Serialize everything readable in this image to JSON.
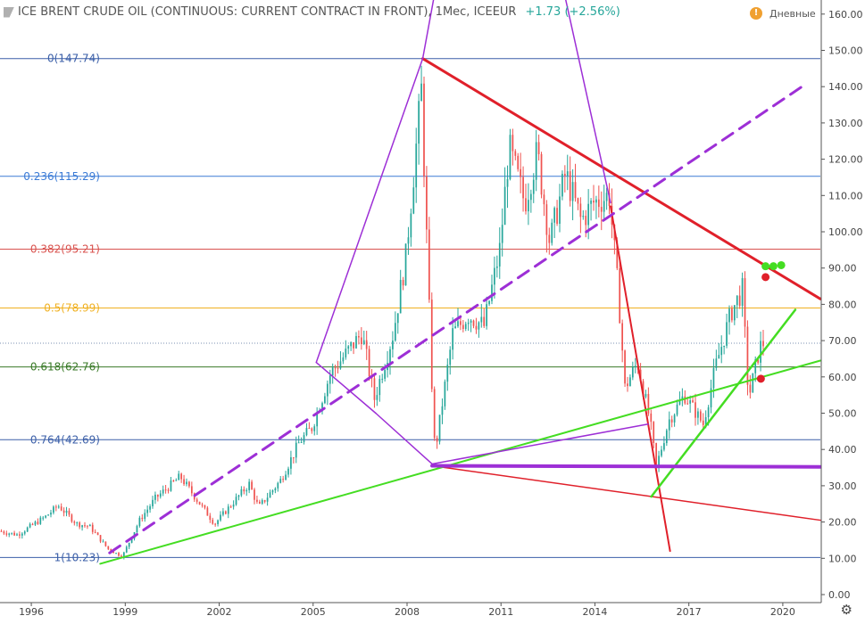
{
  "header": {
    "title": "ICE BRENT CRUDE OIL (CONTINUOUS: CURRENT CONTRACT IN FRONT), 1Мес, ICEEUR",
    "change": "+1.73 (+2.56%)",
    "warning_glyph": "!",
    "interval_label": "Дневные"
  },
  "settings_icon": "⚙",
  "colors": {
    "candle_up": "#26a69a",
    "candle_down": "#ef5350",
    "trend_red": "#e0202a",
    "trend_green": "#44dd22",
    "trend_purple": "#9d2fd6",
    "fib_0": "#3b5fa8",
    "fib_0236": "#3b7bd6",
    "fib_0382": "#d9534f",
    "fib_05": "#f0b020",
    "fib_0618": "#3a7a28",
    "fib_0764": "#3b5fa8",
    "fib_1": "#3b5fa8"
  },
  "chart_data": {
    "type": "candlestick",
    "interval": "1 month",
    "x_range": [
      1995.0,
      2021.2
    ],
    "ylim": [
      0,
      162
    ],
    "y_ticks": [
      "0.00",
      "10.00",
      "20.00",
      "30.00",
      "40.00",
      "50.00",
      "60.00",
      "70.00",
      "80.00",
      "90.00",
      "100.00",
      "110.00",
      "120.00",
      "130.00",
      "140.00",
      "150.00",
      "160.00"
    ],
    "x_ticks": [
      "1996",
      "1999",
      "2002",
      "2005",
      "2008",
      "2011",
      "2014",
      "2017",
      "2020"
    ],
    "fibonacci": [
      {
        "label": "0(147.74)",
        "value": 147.74
      },
      {
        "label": "0.236(115.29)",
        "value": 115.29
      },
      {
        "label": "0.382(95.21)",
        "value": 95.21
      },
      {
        "label": "0.5(78.99)",
        "value": 78.99
      },
      {
        "label": "0.618(62.76)",
        "value": 62.76
      },
      {
        "label": "0.764(42.69)",
        "value": 42.69
      },
      {
        "label": "1(10.23)",
        "value": 10.23
      }
    ],
    "current_price": 69.3,
    "price_path": [
      [
        1995.0,
        17.5
      ],
      [
        1995.6,
        16.5
      ],
      [
        1996.5,
        21.5
      ],
      [
        1996.9,
        24.5
      ],
      [
        1997.5,
        19.5
      ],
      [
        1997.9,
        18.8
      ],
      [
        1998.5,
        12.5
      ],
      [
        1998.95,
        10.5
      ],
      [
        1999.5,
        20.5
      ],
      [
        2000.0,
        26.5
      ],
      [
        2000.8,
        32.5
      ],
      [
        2001.3,
        26.5
      ],
      [
        2001.9,
        19.5
      ],
      [
        2002.5,
        25.5
      ],
      [
        2003.0,
        30.5
      ],
      [
        2003.3,
        24.0
      ],
      [
        2004.0,
        31.5
      ],
      [
        2004.6,
        42.0
      ],
      [
        2005.0,
        46.0
      ],
      [
        2005.6,
        61.0
      ],
      [
        2006.6,
        72.0
      ],
      [
        2007.0,
        54.0
      ],
      [
        2007.6,
        72.0
      ],
      [
        2008.0,
        93.0
      ],
      [
        2008.5,
        139.0
      ],
      [
        2008.9,
        42.0
      ],
      [
        2009.0,
        43.0
      ],
      [
        2009.5,
        72.0
      ],
      [
        2010.0,
        77.0
      ],
      [
        2010.5,
        74.0
      ],
      [
        2011.0,
        95.0
      ],
      [
        2011.3,
        123.0
      ],
      [
        2011.8,
        108.0
      ],
      [
        2012.2,
        122.0
      ],
      [
        2012.6,
        97.0
      ],
      [
        2013.1,
        116.0
      ],
      [
        2013.6,
        103.0
      ],
      [
        2014.0,
        108.0
      ],
      [
        2014.5,
        110.0
      ],
      [
        2014.8,
        82.0
      ],
      [
        2015.0,
        57.0
      ],
      [
        2015.4,
        64.0
      ],
      [
        2015.8,
        48.0
      ],
      [
        2016.0,
        35.0
      ],
      [
        2016.4,
        48.0
      ],
      [
        2016.9,
        55.0
      ],
      [
        2017.5,
        47.0
      ],
      [
        2017.9,
        63.0
      ],
      [
        2018.4,
        78.0
      ],
      [
        2018.75,
        84.0
      ],
      [
        2018.95,
        54.0
      ],
      [
        2019.3,
        68.0
      ],
      [
        2019.4,
        69.3
      ]
    ],
    "trend_lines": [
      {
        "color": "trend_red",
        "width": 3,
        "from": [
          2008.5,
          147.74
        ],
        "to": [
          2021.2,
          81.5
        ]
      },
      {
        "color": "trend_red",
        "width": 2,
        "from": [
          2014.5,
          107.0
        ],
        "to": [
          2016.4,
          12.0
        ]
      },
      {
        "color": "trend_red",
        "width": 1.5,
        "from": [
          2008.8,
          35.5
        ],
        "to": [
          2021.2,
          20.5
        ]
      },
      {
        "color": "trend_green",
        "width": 2,
        "from": [
          1998.2,
          8.5
        ],
        "to": [
          2021.2,
          64.5
        ]
      },
      {
        "color": "trend_green",
        "width": 2.5,
        "from": [
          2015.8,
          27.0
        ],
        "to": [
          2020.4,
          78.5
        ]
      },
      {
        "color": "trend_purple",
        "width": 1.5,
        "from": [
          2008.5,
          147.74
        ],
        "to": [
          2005.1,
          64.0
        ]
      },
      {
        "color": "trend_purple",
        "width": 1.5,
        "from": [
          2008.5,
          147.74
        ],
        "to": [
          2009.4,
          190.0
        ]
      },
      {
        "color": "trend_purple",
        "width": 1.5,
        "from": [
          2005.1,
          64.0
        ],
        "to": [
          2007.0,
          50.0
        ]
      },
      {
        "color": "trend_purple",
        "width": 1.5,
        "from": [
          2007.0,
          50.0
        ],
        "to": [
          2008.8,
          36.0
        ]
      },
      {
        "color": "trend_purple",
        "width": 1.5,
        "from": [
          2008.8,
          36.0
        ],
        "to": [
          2015.7,
          47.0
        ]
      },
      {
        "color": "trend_purple",
        "width": 1.5,
        "from": [
          2012.4,
          190.0
        ],
        "to": [
          2014.5,
          108.0
        ]
      },
      {
        "color": "trend_purple",
        "width": 4,
        "from": [
          2008.8,
          35.5
        ],
        "to": [
          2021.2,
          35.2
        ]
      },
      {
        "color": "trend_purple",
        "width": 3,
        "dash": true,
        "from": [
          1998.5,
          11.5
        ],
        "to": [
          2020.7,
          140.5
        ]
      }
    ],
    "markers": [
      {
        "color": "trend_green",
        "x": 2019.45,
        "y": 90.5
      },
      {
        "color": "trend_green",
        "x": 2019.7,
        "y": 90.5
      },
      {
        "color": "trend_green",
        "x": 2019.95,
        "y": 90.8
      },
      {
        "color": "trend_red",
        "x": 2019.45,
        "y": 87.5
      },
      {
        "color": "trend_red",
        "x": 2019.3,
        "y": 59.5
      }
    ]
  }
}
